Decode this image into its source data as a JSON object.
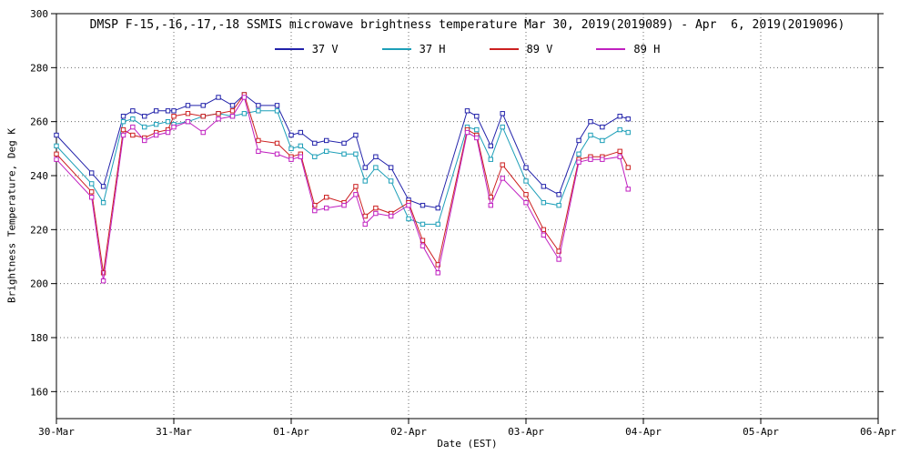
{
  "page": {
    "background": "#ffffff",
    "text_color": "#000000",
    "grid_color": "#6a6a6a",
    "axis_color": "#000000"
  },
  "chart_data": {
    "type": "line",
    "title": "DMSP F-15,-16,-17,-18 SSMIS microwave brightness temperature Mar 30, 2019(2019089) - Apr  6, 2019(2019096)",
    "xlabel": "Date (EST)",
    "ylabel": "Brightness Temperature, Deg K",
    "legend_position": "top-center",
    "grid": "dotted",
    "ylim": [
      150,
      300
    ],
    "y_ticks": [
      160,
      180,
      200,
      220,
      240,
      260,
      280,
      300
    ],
    "x_range_days": [
      0,
      7
    ],
    "x_ticks": [
      "30-Mar",
      "31-Mar",
      "01-Apr",
      "02-Apr",
      "03-Apr",
      "04-Apr",
      "05-Apr",
      "06-Apr"
    ],
    "marker": "open-square",
    "x_days": [
      0.0,
      0.3,
      0.4,
      0.57,
      0.65,
      0.75,
      0.85,
      0.95,
      1.0,
      1.12,
      1.25,
      1.38,
      1.5,
      1.6,
      1.72,
      1.88,
      2.0,
      2.08,
      2.2,
      2.3,
      2.45,
      2.55,
      2.63,
      2.72,
      2.85,
      3.0,
      3.12,
      3.25,
      3.5,
      3.58,
      3.7,
      3.8,
      4.0,
      4.15,
      4.28,
      4.45,
      4.55,
      4.65,
      4.8,
      4.87
    ],
    "series": [
      {
        "name": "37 V",
        "color": "#2222aa",
        "values": [
          255,
          241,
          236,
          262,
          264,
          262,
          264,
          264,
          264,
          266,
          266,
          269,
          266,
          270,
          266,
          266,
          255,
          256,
          252,
          253,
          252,
          255,
          243,
          247,
          243,
          231,
          229,
          228,
          264,
          262,
          251,
          263,
          243,
          236,
          233,
          253,
          260,
          258,
          262,
          261
        ]
      },
      {
        "name": "37 H",
        "color": "#1d9fb8",
        "values": [
          251,
          237,
          230,
          260,
          261,
          258,
          259,
          260,
          259,
          260,
          262,
          263,
          262,
          263,
          264,
          264,
          250,
          251,
          247,
          249,
          248,
          248,
          238,
          243,
          238,
          224,
          222,
          222,
          258,
          257,
          246,
          258,
          238,
          230,
          229,
          248,
          255,
          253,
          257,
          256
        ]
      },
      {
        "name": "89 V",
        "color": "#cc2020",
        "values": [
          248,
          234,
          204,
          257,
          255,
          254,
          256,
          257,
          262,
          263,
          262,
          263,
          264,
          270,
          253,
          252,
          247,
          248,
          229,
          232,
          230,
          236,
          225,
          228,
          226,
          230,
          216,
          207,
          257,
          255,
          232,
          244,
          233,
          220,
          212,
          246,
          247,
          247,
          249,
          243
        ]
      },
      {
        "name": "89 H",
        "color": "#c020c0",
        "values": [
          246,
          232,
          201,
          255,
          258,
          253,
          255,
          256,
          258,
          260,
          256,
          261,
          262,
          269,
          249,
          248,
          246,
          247,
          227,
          228,
          229,
          233,
          222,
          226,
          225,
          229,
          214,
          204,
          256,
          254,
          229,
          239,
          230,
          218,
          209,
          245,
          246,
          246,
          247,
          235
        ]
      }
    ]
  }
}
